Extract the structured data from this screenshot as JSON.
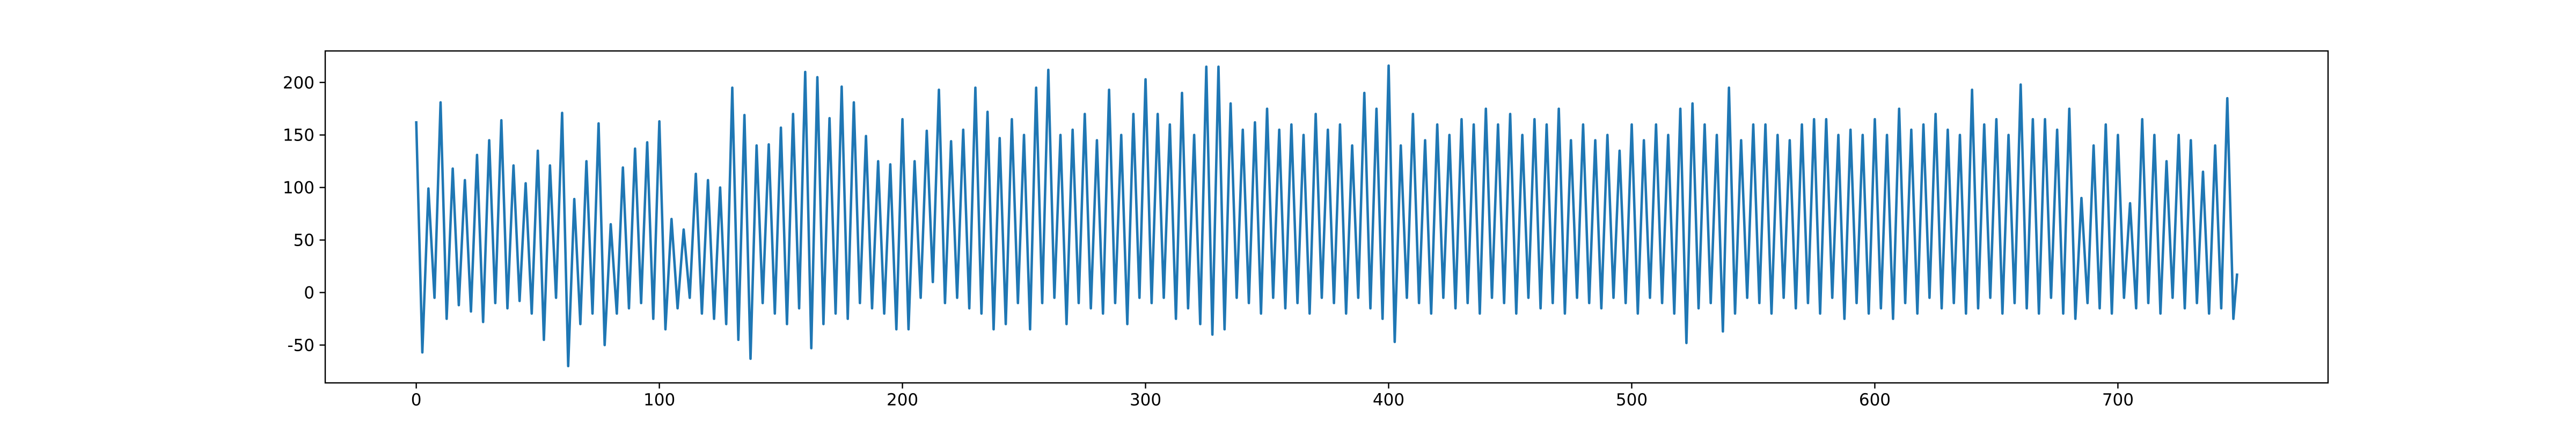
{
  "chart_data": {
    "type": "line",
    "x": [
      0,
      2.5,
      5,
      7.5,
      10,
      12.5,
      15,
      17.5,
      20,
      22.5,
      25,
      27.5,
      30,
      32.5,
      35,
      37.5,
      40,
      42.5,
      45,
      47.5,
      50,
      52.5,
      55,
      57.5,
      60,
      62.5,
      65,
      67.5,
      70,
      72.5,
      75,
      77.5,
      80,
      82.5,
      85,
      87.5,
      90,
      92.5,
      95,
      97.5,
      100,
      102.5,
      105,
      107.5,
      110,
      112.5,
      115,
      117.5,
      120,
      122.5,
      125,
      127.5,
      130,
      132.5,
      135,
      137.5,
      140,
      142.5,
      145,
      147.5,
      150,
      152.5,
      155,
      157.5,
      160,
      162.5,
      165,
      167.5,
      170,
      172.5,
      175,
      177.5,
      180,
      182.5,
      185,
      187.5,
      190,
      192.5,
      195,
      197.5,
      200,
      202.5,
      205,
      207.5,
      210,
      212.5,
      215,
      217.5,
      220,
      222.5,
      225,
      227.5,
      230,
      232.5,
      235,
      237.5,
      240,
      242.5,
      245,
      247.5,
      250,
      252.5,
      255,
      257.5,
      260,
      262.5,
      265,
      267.5,
      270,
      272.5,
      275,
      277.5,
      280,
      282.5,
      285,
      287.5,
      290,
      292.5,
      295,
      297.5,
      300,
      302.5,
      305,
      307.5,
      310,
      312.5,
      315,
      317.5,
      320,
      322.5,
      325,
      327.5,
      330,
      332.5,
      335,
      337.5,
      340,
      342.5,
      345,
      347.5,
      350,
      352.5,
      355,
      357.5,
      360,
      362.5,
      365,
      367.5,
      370,
      372.5,
      375,
      377.5,
      380,
      382.5,
      385,
      387.5,
      390,
      392.5,
      395,
      397.5,
      400,
      402.5,
      405,
      407.5,
      410,
      412.5,
      415,
      417.5,
      420,
      422.5,
      425,
      427.5,
      430,
      432.5,
      435,
      437.5,
      440,
      442.5,
      445,
      447.5,
      450,
      452.5,
      455,
      457.5,
      460,
      462.5,
      465,
      467.5,
      470,
      472.5,
      475,
      477.5,
      480,
      482.5,
      485,
      487.5,
      490,
      492.5,
      495,
      497.5,
      500,
      502.5,
      505,
      507.5,
      510,
      512.5,
      515,
      517.5,
      520,
      522.5,
      525,
      527.5,
      530,
      532.5,
      535,
      537.5,
      540,
      542.5,
      545,
      547.5,
      550,
      552.5,
      555,
      557.5,
      560,
      562.5,
      565,
      567.5,
      570,
      572.5,
      575,
      577.5,
      580,
      582.5,
      585,
      587.5,
      590,
      592.5,
      595,
      597.5,
      600,
      602.5,
      605,
      607.5,
      610,
      612.5,
      615,
      617.5,
      620,
      622.5,
      625,
      627.5,
      630,
      632.5,
      635,
      637.5,
      640,
      642.5,
      645,
      647.5,
      650,
      652.5,
      655,
      657.5,
      660,
      662.5,
      665,
      667.5,
      670,
      672.5,
      675,
      677.5,
      680,
      682.5,
      685,
      687.5,
      690,
      692.5,
      695,
      697.5,
      700,
      702.5,
      705,
      707.5,
      710,
      712.5,
      715,
      717.5,
      720,
      722.5,
      725,
      727.5,
      730,
      732.5,
      735,
      737.5,
      740,
      742.5,
      745,
      747.5,
      749
    ],
    "series": [
      {
        "color": "#1f77b4",
        "values": [
          162,
          -57,
          99,
          -5,
          181,
          -25,
          118,
          -12,
          107,
          -18,
          131,
          -28,
          145,
          -10,
          164,
          -15,
          121,
          -8,
          104,
          -20,
          135,
          -45,
          121,
          -5,
          171,
          -70,
          89,
          -30,
          125,
          -20,
          161,
          -50,
          65,
          -20,
          119,
          -15,
          137,
          -10,
          143,
          -25,
          163,
          -35,
          70,
          -15,
          60,
          -5,
          113,
          -20,
          107,
          -25,
          100,
          -30,
          195,
          -45,
          169,
          -63,
          140,
          -10,
          141,
          -20,
          157,
          -30,
          170,
          -15,
          210,
          -53,
          205,
          -30,
          166,
          -20,
          196,
          -25,
          181,
          -10,
          149,
          -15,
          125,
          -20,
          122,
          -35,
          165,
          -35,
          125,
          -5,
          154,
          10,
          193,
          -10,
          144,
          -5,
          155,
          -15,
          195,
          -20,
          172,
          -35,
          147,
          -30,
          165,
          -10,
          150,
          -35,
          195,
          -10,
          212,
          -5,
          150,
          -30,
          155,
          -10,
          170,
          -15,
          145,
          -20,
          193,
          -10,
          150,
          -30,
          170,
          -5,
          203,
          -10,
          170,
          -5,
          160,
          -25,
          190,
          -15,
          150,
          -30,
          215,
          -40,
          215,
          -35,
          180,
          -5,
          155,
          -10,
          162,
          -20,
          175,
          -5,
          155,
          -15,
          160,
          -10,
          150,
          -20,
          170,
          -5,
          155,
          -10,
          160,
          -20,
          140,
          -5,
          190,
          -15,
          175,
          -25,
          216,
          -47,
          140,
          -5,
          170,
          -10,
          145,
          -20,
          160,
          -5,
          150,
          -15,
          165,
          -10,
          160,
          -20,
          175,
          -5,
          160,
          -10,
          170,
          -20,
          150,
          -5,
          165,
          -15,
          160,
          -10,
          175,
          -20,
          145,
          -5,
          160,
          -10,
          145,
          -15,
          150,
          -5,
          135,
          -10,
          160,
          -20,
          145,
          -5,
          160,
          -10,
          150,
          -20,
          175,
          -48,
          180,
          -15,
          160,
          -10,
          150,
          -37,
          195,
          -20,
          145,
          -5,
          160,
          -10,
          160,
          -20,
          150,
          -5,
          145,
          -15,
          160,
          -10,
          165,
          -20,
          165,
          -5,
          150,
          -25,
          155,
          -10,
          150,
          -20,
          165,
          -15,
          150,
          -25,
          175,
          -10,
          155,
          -20,
          160,
          -5,
          170,
          -15,
          155,
          -10,
          150,
          -20,
          193,
          -15,
          160,
          -5,
          165,
          -20,
          150,
          -10,
          198,
          -15,
          165,
          -20,
          165,
          -5,
          155,
          -20,
          175,
          -25,
          90,
          -10,
          140,
          -15,
          160,
          -20,
          150,
          -5,
          85,
          -15,
          165,
          -10,
          150,
          -20,
          125,
          -5,
          150,
          -15,
          145,
          -10,
          115,
          -20,
          140,
          -15,
          185,
          -25,
          17
        ]
      }
    ],
    "xlim": [
      -37.45,
      786.45
    ],
    "xticks": [
      0,
      100,
      200,
      300,
      400,
      500,
      600,
      700
    ],
    "ylim": [
      -86,
      230
    ],
    "yticks": [
      -50,
      0,
      50,
      100,
      150,
      200
    ],
    "grid": false
  }
}
